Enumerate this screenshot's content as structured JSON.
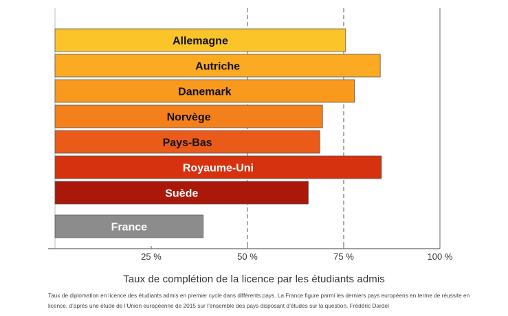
{
  "chart_data": {
    "type": "bar",
    "orientation": "horizontal",
    "categories": [
      "Allemagne",
      "Autriche",
      "Danemark",
      "Norvège",
      "Pays-Bas",
      "Royaume-Uni",
      "Suède",
      "France"
    ],
    "values": [
      75.5,
      84.5,
      77.8,
      69.5,
      68.8,
      84.8,
      65.8,
      38.5
    ],
    "colors": [
      "#fbc52a",
      "#fbaa22",
      "#f99a1f",
      "#f4801c",
      "#ea5a18",
      "#d6320f",
      "#aa1809",
      "#8c8c8c"
    ],
    "label_colors": [
      "#111111",
      "#111111",
      "#111111",
      "#111111",
      "#111111",
      "#ffffff",
      "#ffffff",
      "#ffffff"
    ],
    "xlim": [
      0,
      100
    ],
    "xticks": [
      25,
      50,
      75,
      100
    ],
    "xtick_labels": [
      "25 %",
      "50 %",
      "75 %",
      "100 %"
    ],
    "gridlines": [
      50,
      75
    ],
    "gridline_style": "dashed",
    "title": "Taux de complétion de la licence par les étudiants admis",
    "xlabel": "",
    "ylabel": ""
  },
  "caption": "Taux de diplomation en licence des étudiants admis en premier cycle dans différents pays. La France figure parmi les derniers pays européens en terme de réussite en licence, d’après une étude de l’Union européenne de 2015 sur l’ensemble des pays disposant d’études sur la question. Frédéric Dardel"
}
